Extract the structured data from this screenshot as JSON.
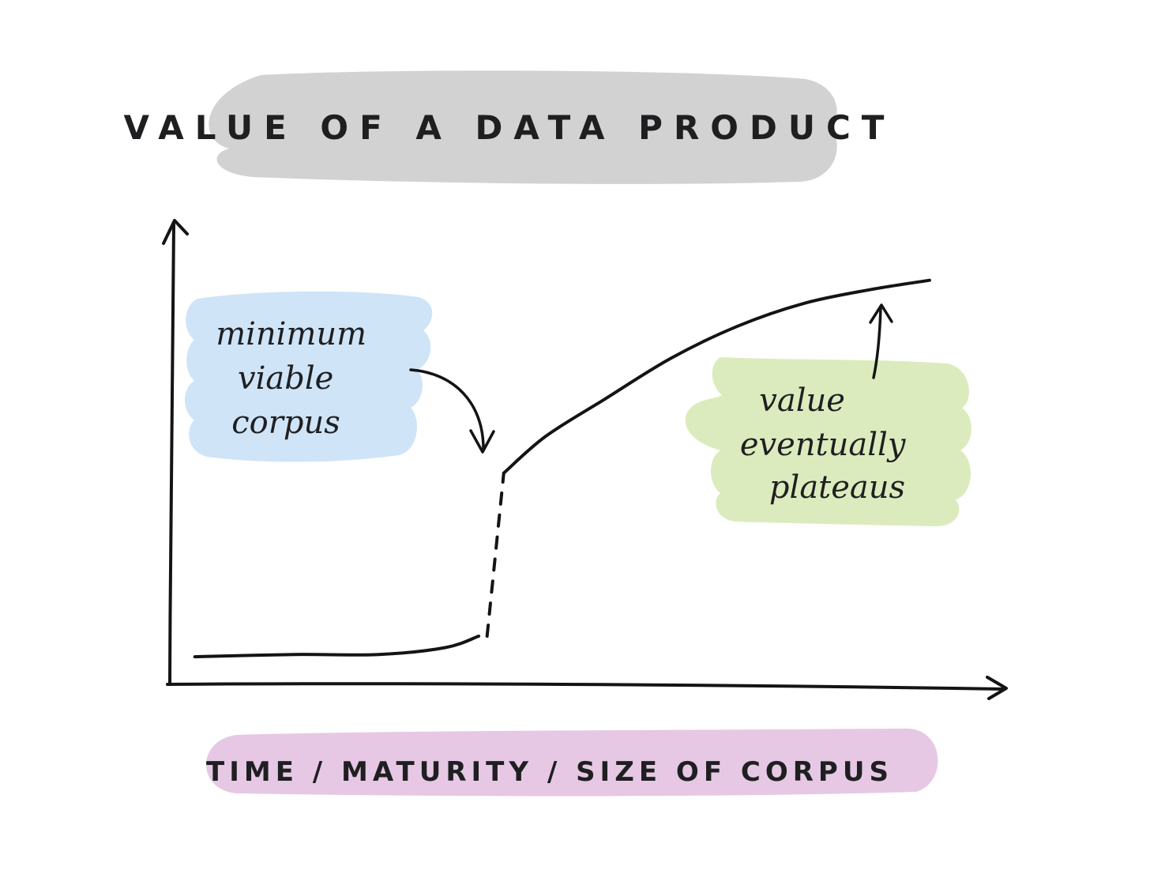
{
  "colors": {
    "title_blob": "#d2d2d2",
    "left_note_blob": "#cfe4f7",
    "right_note_blob": "#dcebbd",
    "axis_label_blob": "#e6c8e4",
    "ink": "#141414"
  },
  "chart_data": {
    "type": "line",
    "title": "VALUE OF A DATA PRODUCT",
    "xlabel": "TIME / MATURITY / SIZE OF CORPUS",
    "ylabel": "",
    "axis_ticks": false,
    "grid": false,
    "xlim": [
      0,
      100
    ],
    "ylim": [
      0,
      100
    ],
    "series": [
      {
        "style": "solid",
        "x": [
          3,
          15,
          25,
          33,
          37
        ],
        "y": [
          6,
          6.5,
          6.5,
          8,
          10.5
        ]
      },
      {
        "style": "dashed",
        "x": [
          38,
          40
        ],
        "y": [
          10.5,
          46
        ]
      },
      {
        "style": "solid",
        "x": [
          40,
          45,
          52,
          60,
          68,
          76,
          84,
          91
        ],
        "y": [
          46,
          54,
          62,
          71,
          78,
          83,
          86,
          88
        ]
      }
    ],
    "annotations": [
      {
        "text_lines": [
          "minimum",
          "viable",
          "corpus"
        ],
        "points_to_x": 38
      },
      {
        "text_lines": [
          "value",
          "eventually",
          "plateaus"
        ],
        "points_to_x": 91
      }
    ]
  }
}
